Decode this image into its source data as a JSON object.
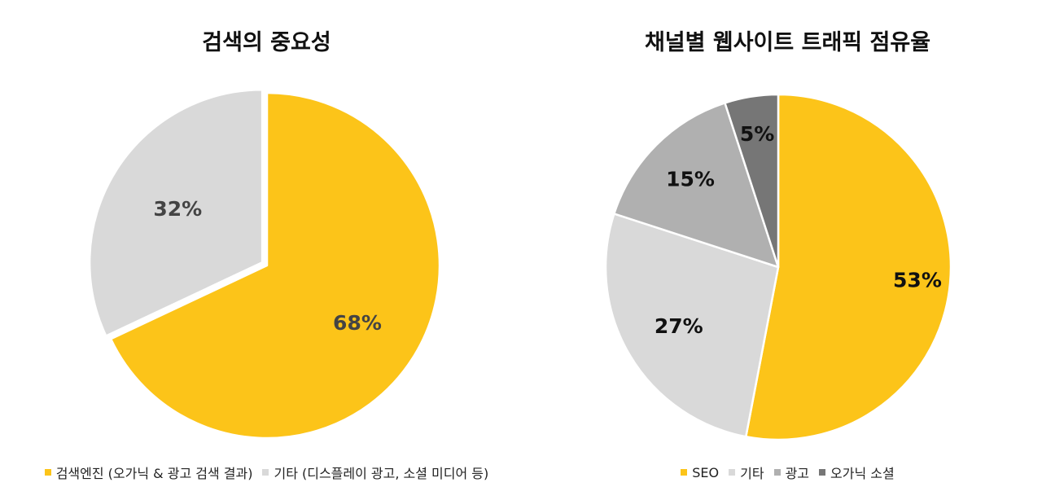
{
  "chart_data": [
    {
      "type": "pie",
      "title": "검색의 중요성",
      "legend_position": "bottom",
      "slices": [
        {
          "label": "검색엔진 (오가닉 & 광고 검색 결과)",
          "value": 68,
          "display": "68%",
          "color": "#fcc419"
        },
        {
          "label": "기타 (디스플레이 광고, 소셜 미디어 등)",
          "value": 32,
          "display": "32%",
          "color": "#d9d9d9"
        }
      ]
    },
    {
      "type": "pie",
      "title": "채널별 웹사이트 트래픽 점유율",
      "legend_position": "bottom",
      "slices": [
        {
          "label": "SEO",
          "value": 53,
          "display": "53%",
          "color": "#fcc419"
        },
        {
          "label": "기타",
          "value": 27,
          "display": "27%",
          "color": "#d9d9d9"
        },
        {
          "label": "광고",
          "value": 15,
          "display": "15%",
          "color": "#b0b0b0"
        },
        {
          "label": "오가닉 소셜",
          "value": 5,
          "display": "5%",
          "color": "#767676"
        }
      ]
    }
  ]
}
